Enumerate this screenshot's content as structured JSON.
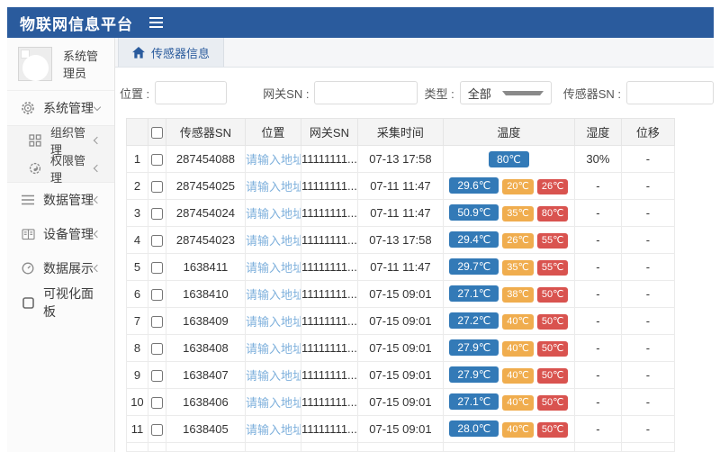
{
  "app": {
    "title": "物联网信息平台"
  },
  "sidebar": {
    "user_name": "系统管理员",
    "menu": [
      {
        "label": "系统管理",
        "icon": "gear-icon",
        "chevron": "down",
        "expanded": true
      },
      {
        "label": "组织管理",
        "icon": "org-grid-icon",
        "chevron": "left",
        "submenu": true
      },
      {
        "label": "权限管理",
        "icon": "permission-gear-icon",
        "chevron": "left",
        "submenu": true
      },
      {
        "label": "数据管理",
        "icon": "data-lines-icon",
        "chevron": "left"
      },
      {
        "label": "设备管理",
        "icon": "device-book-icon",
        "chevron": "left"
      },
      {
        "label": "数据展示",
        "icon": "gauge-icon",
        "chevron": "left"
      },
      {
        "label": "可视化面板",
        "icon": "panel-icon",
        "chevron": null
      }
    ]
  },
  "tabbar": {
    "tab_label": "传感器信息",
    "tab_icon": "home-icon"
  },
  "filters": {
    "location_label": "位置 :",
    "location_value": "",
    "gateway_label": "网关SN :",
    "gateway_value": "",
    "type_label": "类型 :",
    "type_value": "全部",
    "sensor_label": "传感器SN :",
    "sensor_value": ""
  },
  "table": {
    "columns": [
      "传感器SN",
      "位置",
      "网关SN",
      "采集时间",
      "温度",
      "湿度",
      "位移"
    ],
    "rows": [
      {
        "index": "1",
        "sensor_sn": "287454088",
        "location": "请输入地址",
        "gateway_sn": "11111111...",
        "time": "07-13 17:58",
        "temps": [
          {
            "text": "80℃",
            "type": "blue"
          }
        ],
        "humidity": "30%",
        "displacement": "-"
      },
      {
        "index": "2",
        "sensor_sn": "287454025",
        "location": "请输入地址",
        "gateway_sn": "11111111...",
        "time": "07-11 11:47",
        "temps": [
          {
            "text": "29.6℃",
            "type": "blue"
          },
          {
            "text": "20℃",
            "type": "orange"
          },
          {
            "text": "26℃",
            "type": "red"
          }
        ],
        "humidity": "-",
        "displacement": "-"
      },
      {
        "index": "3",
        "sensor_sn": "287454024",
        "location": "请输入地址",
        "gateway_sn": "11111111...",
        "time": "07-11 11:47",
        "temps": [
          {
            "text": "50.9℃",
            "type": "blue"
          },
          {
            "text": "35℃",
            "type": "orange"
          },
          {
            "text": "80℃",
            "type": "red"
          }
        ],
        "humidity": "-",
        "displacement": "-"
      },
      {
        "index": "4",
        "sensor_sn": "287454023",
        "location": "请输入地址",
        "gateway_sn": "11111111...",
        "time": "07-13 17:58",
        "temps": [
          {
            "text": "29.4℃",
            "type": "blue"
          },
          {
            "text": "26℃",
            "type": "orange"
          },
          {
            "text": "55℃",
            "type": "red"
          }
        ],
        "humidity": "-",
        "displacement": "-"
      },
      {
        "index": "5",
        "sensor_sn": "1638411",
        "location": "请输入地址",
        "gateway_sn": "11111111...",
        "time": "07-11 11:47",
        "temps": [
          {
            "text": "29.7℃",
            "type": "blue"
          },
          {
            "text": "35℃",
            "type": "orange"
          },
          {
            "text": "55℃",
            "type": "red"
          }
        ],
        "humidity": "-",
        "displacement": "-"
      },
      {
        "index": "6",
        "sensor_sn": "1638410",
        "location": "请输入地址",
        "gateway_sn": "11111111...",
        "time": "07-15 09:01",
        "temps": [
          {
            "text": "27.1℃",
            "type": "blue"
          },
          {
            "text": "38℃",
            "type": "orange"
          },
          {
            "text": "50℃",
            "type": "red"
          }
        ],
        "humidity": "-",
        "displacement": "-"
      },
      {
        "index": "7",
        "sensor_sn": "1638409",
        "location": "请输入地址",
        "gateway_sn": "11111111...",
        "time": "07-15 09:01",
        "temps": [
          {
            "text": "27.2℃",
            "type": "blue"
          },
          {
            "text": "40℃",
            "type": "orange"
          },
          {
            "text": "50℃",
            "type": "red"
          }
        ],
        "humidity": "-",
        "displacement": "-"
      },
      {
        "index": "8",
        "sensor_sn": "1638408",
        "location": "请输入地址",
        "gateway_sn": "11111111...",
        "time": "07-15 09:01",
        "temps": [
          {
            "text": "27.9℃",
            "type": "blue"
          },
          {
            "text": "40℃",
            "type": "orange"
          },
          {
            "text": "50℃",
            "type": "red"
          }
        ],
        "humidity": "-",
        "displacement": "-"
      },
      {
        "index": "9",
        "sensor_sn": "1638407",
        "location": "请输入地址",
        "gateway_sn": "11111111...",
        "time": "07-15 09:01",
        "temps": [
          {
            "text": "27.9℃",
            "type": "blue"
          },
          {
            "text": "40℃",
            "type": "orange"
          },
          {
            "text": "50℃",
            "type": "red"
          }
        ],
        "humidity": "-",
        "displacement": "-"
      },
      {
        "index": "10",
        "sensor_sn": "1638406",
        "location": "请输入地址",
        "gateway_sn": "11111111...",
        "time": "07-15 09:01",
        "temps": [
          {
            "text": "27.1℃",
            "type": "blue"
          },
          {
            "text": "40℃",
            "type": "orange"
          },
          {
            "text": "50℃",
            "type": "red"
          }
        ],
        "humidity": "-",
        "displacement": "-"
      },
      {
        "index": "11",
        "sensor_sn": "1638405",
        "location": "请输入地址",
        "gateway_sn": "11111111...",
        "time": "07-15 09:01",
        "temps": [
          {
            "text": "28.0℃",
            "type": "blue"
          },
          {
            "text": "40℃",
            "type": "orange"
          },
          {
            "text": "50℃",
            "type": "red"
          }
        ],
        "humidity": "-",
        "displacement": "-"
      }
    ]
  },
  "colors": {
    "header_bg": "#2a5b9d",
    "badge_blue": "#337ab7",
    "badge_orange": "#f0ad4e",
    "badge_red": "#d9534f",
    "location_link": "#7eb0dc"
  }
}
